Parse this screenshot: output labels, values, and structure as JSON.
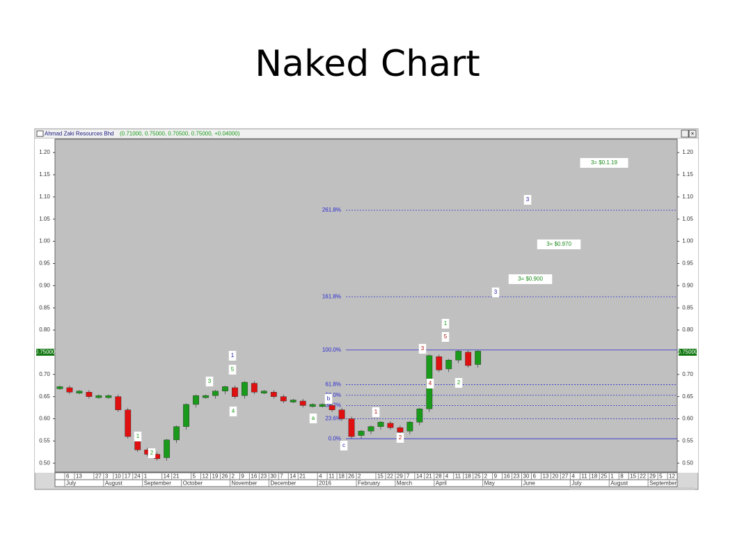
{
  "slide_title": "Naked Chart",
  "chart_data": {
    "type": "candle",
    "title": "Ahmad Zaki Resources Bhd",
    "subtitle": "(0.71000, 0.75000, 0.70500, 0.75000, +0.04000)",
    "last_price_label": "0.75000",
    "last_price": 0.75,
    "up_color": "#1a9a1a",
    "down_color": "#e01010",
    "ylim": [
      0.48,
      1.23
    ],
    "yticks": [
      {
        "value": 0.5,
        "label": "0.50"
      },
      {
        "value": 0.55,
        "label": "0.55"
      },
      {
        "value": 0.6,
        "label": "0.60"
      },
      {
        "value": 0.65,
        "label": "0.65"
      },
      {
        "value": 0.7,
        "label": "0.70"
      },
      {
        "value": 0.75,
        "label": "0.75"
      },
      {
        "value": 0.8,
        "label": "0.80"
      },
      {
        "value": 0.85,
        "label": "0.85"
      },
      {
        "value": 0.9,
        "label": "0.90"
      },
      {
        "value": 0.95,
        "label": "0.95"
      },
      {
        "value": 1.0,
        "label": "1.00"
      },
      {
        "value": 1.05,
        "label": "1.05"
      },
      {
        "value": 1.1,
        "label": "1.10"
      },
      {
        "value": 1.15,
        "label": "1.15"
      },
      {
        "value": 1.2,
        "label": "1.20"
      }
    ],
    "day_labels": [
      null,
      "6",
      "13",
      null,
      "27",
      "3",
      "10",
      "17",
      "24",
      "1",
      null,
      "14",
      "21",
      null,
      "5",
      "12",
      "19",
      "26",
      "2",
      "9",
      "16",
      "23",
      "30",
      "7",
      "14",
      "21",
      null,
      "4",
      "11",
      "18",
      "26",
      "2",
      null,
      "15",
      "22",
      "29",
      "7",
      "14",
      "21",
      "28",
      "4",
      "11",
      "18",
      "25",
      "2",
      "9",
      "16",
      "23",
      "30",
      "6",
      "13",
      "20",
      "27",
      "4",
      "11",
      "18",
      "25",
      "1",
      "8",
      "15",
      "22",
      "29",
      "5",
      "12"
    ],
    "month_labels": [
      null,
      "July",
      null,
      null,
      null,
      "August",
      null,
      null,
      null,
      "September",
      null,
      null,
      null,
      "October",
      null,
      null,
      null,
      null,
      "November",
      null,
      null,
      null,
      "December",
      null,
      null,
      null,
      null,
      "2016",
      null,
      null,
      null,
      "February",
      null,
      null,
      null,
      "March",
      null,
      null,
      null,
      "April",
      null,
      null,
      null,
      null,
      "May",
      null,
      null,
      null,
      "June",
      null,
      null,
      null,
      null,
      "July",
      null,
      null,
      null,
      "August",
      null,
      null,
      null,
      "September",
      null,
      null
    ],
    "values": [
      0.67,
      0.66,
      0.66,
      0.65,
      0.65,
      0.65,
      0.62,
      0.56,
      0.53,
      0.52,
      0.51,
      0.55,
      0.58,
      0.63,
      0.65,
      0.65,
      0.66,
      0.67,
      0.65,
      0.68,
      0.66,
      0.66,
      0.65,
      0.64,
      0.64,
      0.63,
      0.63,
      0.63,
      0.62,
      0.6,
      0.56,
      0.57,
      0.58,
      0.59,
      0.58,
      0.57,
      0.59,
      0.62,
      0.74,
      0.71,
      0.73,
      0.75,
      0.72,
      0.75,
      null,
      null,
      null,
      null,
      null,
      null,
      null,
      null,
      null,
      null,
      null,
      null,
      null,
      null,
      null,
      null,
      null,
      null,
      null,
      null
    ],
    "fib_levels": [
      {
        "name": "261.8%",
        "value": 1.07,
        "solid": false
      },
      {
        "name": "161.8%",
        "value": 0.875,
        "solid": false
      },
      {
        "name": "100.0%",
        "value": 0.755,
        "solid": true
      },
      {
        "name": "61.8%",
        "value": 0.677,
        "solid": false
      },
      {
        "name": "50.0%",
        "value": 0.653,
        "solid": false
      },
      {
        "name": "38.2%",
        "value": 0.63,
        "solid": false
      },
      {
        "name": "23.6%",
        "value": 0.6,
        "solid": false
      },
      {
        "name": "0.0%",
        "value": 0.555,
        "solid": true
      }
    ],
    "annotations": [
      {
        "text": "1",
        "color": "#1a1aa0"
      },
      {
        "text": "5",
        "color": "#1a9a1a"
      },
      {
        "text": "3",
        "color": "#1a9a1a"
      },
      {
        "text": "4",
        "color": "#1a9a1a"
      },
      {
        "text": "1",
        "color": "#1a9a1a"
      },
      {
        "text": "2",
        "color": "#1a9a1a"
      },
      {
        "text": "a",
        "color": "#1a9a1a"
      },
      {
        "text": "b",
        "color": "#1a1aa0"
      },
      {
        "text": "c",
        "color": "#1a1aa0"
      },
      {
        "text": "1",
        "color": "#b01010"
      },
      {
        "text": "2",
        "color": "#b01010"
      },
      {
        "text": "3",
        "color": "#b01010"
      },
      {
        "text": "4",
        "color": "#b01010"
      },
      {
        "text": "5",
        "color": "#b01010"
      },
      {
        "text": "1",
        "color": "#1a9a1a"
      },
      {
        "text": "2",
        "color": "#1a9a1a"
      },
      {
        "text": "3",
        "color": "#1a1aa0"
      },
      {
        "text": "3",
        "color": "#1a1aa0"
      },
      {
        "text": "3= $0.1.19",
        "color": "#1a8a1a"
      },
      {
        "text": "3= $0.970",
        "color": "#1a8a1a"
      },
      {
        "text": "3= $0.900",
        "color": "#1a8a1a"
      }
    ]
  }
}
